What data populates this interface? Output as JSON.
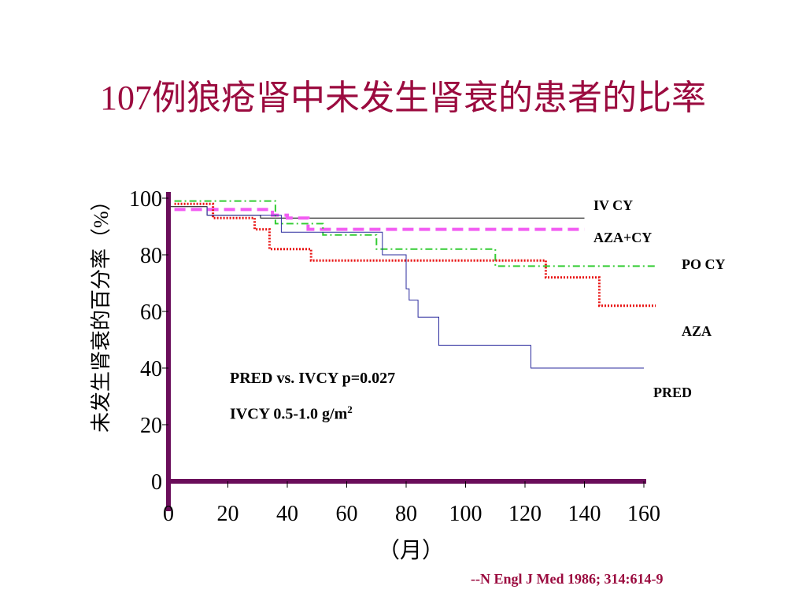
{
  "page": {
    "title": "107例狼疮肾中未发生肾衰的患者的比率",
    "citation": "--N Engl J Med 1986; 314:614-9"
  },
  "annotations": {
    "line1": "PRED vs. IVCY p=0.027",
    "line2_prefix": "IVCY 0.5-1.0 g/m",
    "line2_sup": "2"
  },
  "colors": {
    "title": "#9b0b3f",
    "axis": "#6a0d5a",
    "iv_cy": "#000000",
    "aza_cy": "#f25cf2",
    "po_cy": "#33cc33",
    "aza": "#e81212",
    "pred": "#2b2b9e"
  },
  "chart_data": {
    "type": "line",
    "title": "107例狼疮肾中未发生肾衰的患者的比率",
    "xlabel": "（月）",
    "ylabel": "未发生肾衰的百分率（%）",
    "xlim": [
      0,
      160
    ],
    "ylim": [
      0,
      100
    ],
    "x_ticks": [
      {
        "v": 0,
        "label": "0"
      },
      {
        "v": 20,
        "label": "20"
      },
      {
        "v": 40,
        "label": "40"
      },
      {
        "v": 60,
        "label": "60"
      },
      {
        "v": 80,
        "label": "80"
      },
      {
        "v": 100,
        "label": "100"
      },
      {
        "v": 120,
        "label": "120"
      },
      {
        "v": 140,
        "label": "140"
      },
      {
        "v": 160,
        "label": "160"
      }
    ],
    "y_ticks": [
      {
        "v": 0,
        "label": "0"
      },
      {
        "v": 20,
        "label": "20"
      },
      {
        "v": 40,
        "label": "40"
      },
      {
        "v": 60,
        "label": "60"
      },
      {
        "v": 80,
        "label": "80"
      },
      {
        "v": 100,
        "label": "100"
      }
    ],
    "series": [
      {
        "name": "IV CY",
        "color": "#000000",
        "dash": "",
        "width": 1,
        "x": [
          0,
          13,
          13,
          31,
          31,
          140
        ],
        "y": [
          97,
          97,
          94,
          94,
          93,
          93
        ]
      },
      {
        "name": "AZA+CY",
        "color": "#f25cf2",
        "dash": "14 7",
        "width": 4,
        "x": [
          2,
          35,
          35,
          40,
          40,
          47,
          47,
          140
        ],
        "y": [
          96,
          96,
          94,
          94,
          93,
          93,
          89,
          89
        ]
      },
      {
        "name": "PO CY",
        "color": "#33cc33",
        "dash": "9 4 2 4",
        "width": 2,
        "x": [
          2,
          36,
          36,
          52,
          52,
          70,
          70,
          110,
          110,
          164
        ],
        "y": [
          99,
          99,
          91,
          91,
          87,
          87,
          82,
          82,
          76,
          76
        ]
      },
      {
        "name": "AZA",
        "color": "#e81212",
        "dash": "2 2",
        "width": 3,
        "x": [
          2,
          15,
          15,
          29,
          29,
          34,
          34,
          48,
          48,
          127,
          127,
          145,
          145,
          164
        ],
        "y": [
          98,
          98,
          93,
          93,
          89,
          89,
          82,
          82,
          78,
          78,
          72,
          72,
          62,
          62
        ]
      },
      {
        "name": "PRED",
        "color": "#2b2b9e",
        "dash": "",
        "width": 1,
        "x": [
          13,
          13,
          38,
          38,
          72,
          72,
          80,
          80,
          81,
          81,
          84,
          84,
          91,
          91,
          100,
          100,
          122,
          122,
          160
        ],
        "y": [
          97,
          94,
          94,
          88,
          88,
          80,
          80,
          68,
          68,
          64,
          64,
          58,
          58,
          48,
          48,
          48,
          48,
          40,
          40
        ]
      }
    ],
    "legend": [
      {
        "label": "IV CY",
        "series": "IV CY"
      },
      {
        "label": "AZA+CY",
        "series": "AZA+CY"
      },
      {
        "label": "PO CY",
        "series": "PO CY"
      },
      {
        "label": "AZA",
        "series": "AZA"
      },
      {
        "label": "PRED",
        "series": "PRED"
      }
    ]
  }
}
